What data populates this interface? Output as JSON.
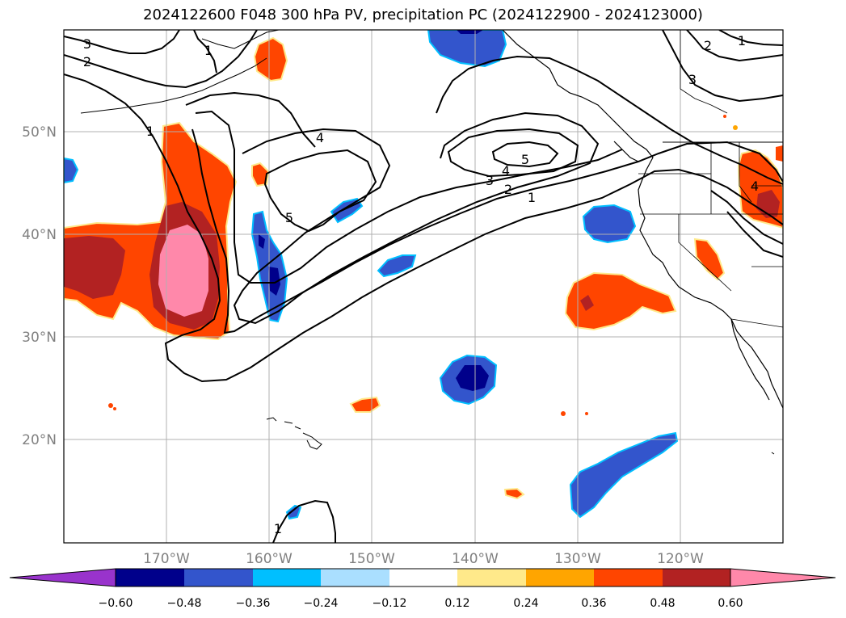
{
  "title": "2024122600 F048 300 hPa PV, precipitation PC (2024122900 - 2024123000)",
  "lat_labels": [
    "50°N",
    "40°N",
    "30°N",
    "20°N"
  ],
  "lon_labels": [
    "170°W",
    "160°W",
    "150°W",
    "140°W",
    "130°W",
    "120°W"
  ],
  "contour_labels": [
    "3",
    "2",
    "1",
    "1",
    "4",
    "5",
    "5",
    "4",
    "3",
    "2",
    "1",
    "2",
    "3",
    "1",
    "1",
    "4"
  ],
  "colorbar": {
    "ticks": [
      "−0.60",
      "−0.48",
      "−0.36",
      "−0.24",
      "−0.12",
      "0.12",
      "0.24",
      "0.36",
      "0.48",
      "0.60"
    ],
    "colors": [
      "#9933cc",
      "#00008b",
      "#3355cc",
      "#00bfff",
      "#aadfff",
      "#ffffff",
      "#ffe98a",
      "#ffa500",
      "#ff4500",
      "#b22222",
      "#ff88aa"
    ]
  },
  "colors": {
    "contour": "#000000",
    "grid": "#b0b0b0",
    "coast": "#000000"
  }
}
